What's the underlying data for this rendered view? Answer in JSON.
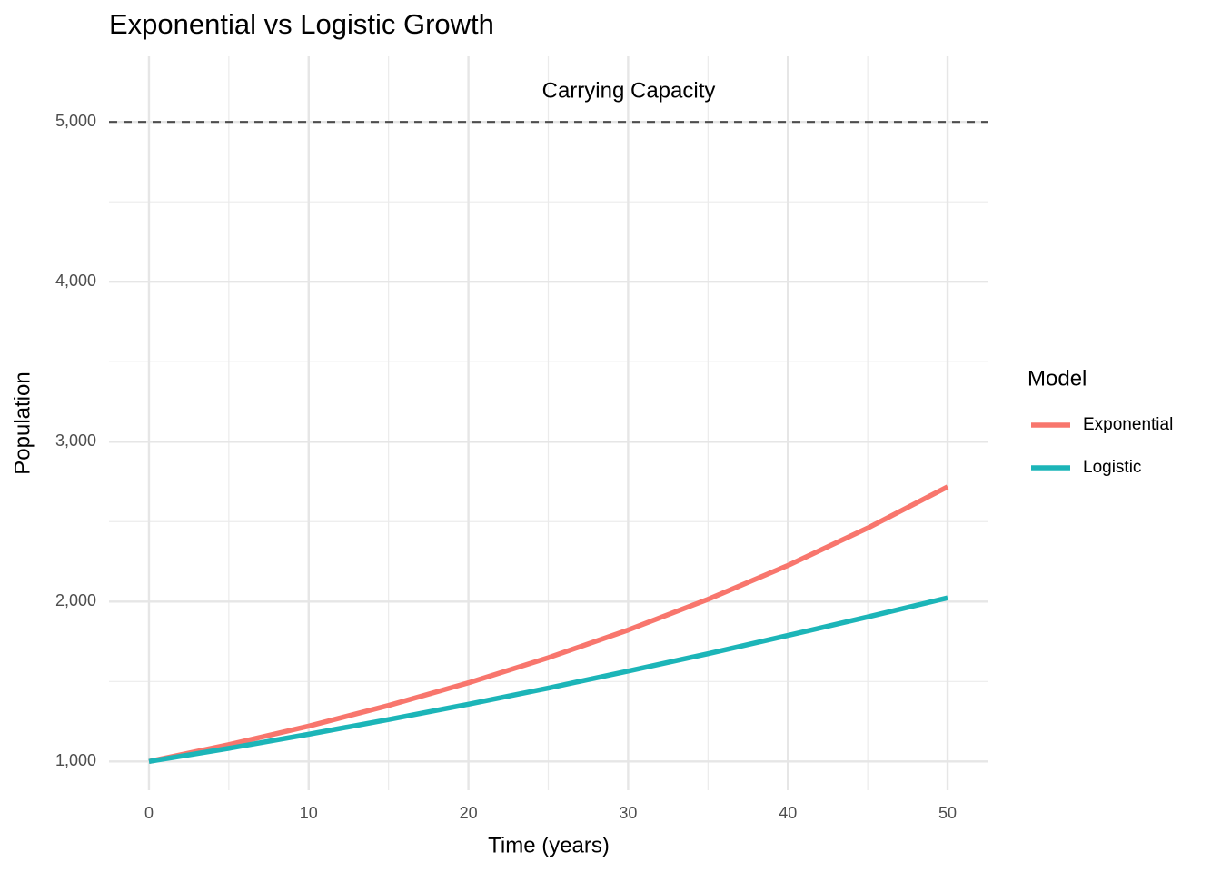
{
  "chart_data": {
    "type": "line",
    "title": "Exponential vs Logistic Growth",
    "x_label": "Time (years)",
    "y_label": "Population",
    "x": [
      0,
      5,
      10,
      15,
      20,
      25,
      30,
      35,
      40,
      45,
      50
    ],
    "series": [
      {
        "name": "Exponential",
        "color": "#F8766D",
        "values": [
          1000,
          1105,
          1221,
          1350,
          1492,
          1649,
          1822,
          2014,
          2226,
          2460,
          2718
        ]
      },
      {
        "name": "Logistic",
        "color": "#1CB5B8",
        "values": [
          1000,
          1082,
          1170,
          1262,
          1358,
          1459,
          1565,
          1674,
          1788,
          1904,
          2023
        ]
      }
    ],
    "legend_title": "Model",
    "legend_position": "right",
    "reference_line": {
      "value": 5000,
      "label": "Carrying Capacity"
    },
    "xlim": [
      -2.5,
      52.5
    ],
    "ylim": [
      820,
      5410
    ],
    "xticks": [
      0,
      10,
      20,
      30,
      40,
      50
    ],
    "yticks": [
      {
        "value": 1000,
        "label": "1,000"
      },
      {
        "value": 2000,
        "label": "2,000"
      },
      {
        "value": 3000,
        "label": "3,000"
      },
      {
        "value": 4000,
        "label": "4,000"
      },
      {
        "value": 5000,
        "label": "5,000"
      }
    ],
    "minor_xticks": [
      5,
      15,
      25,
      35,
      45
    ],
    "minor_yticks": [
      1500,
      2500,
      3500,
      4500
    ],
    "grid": true
  }
}
